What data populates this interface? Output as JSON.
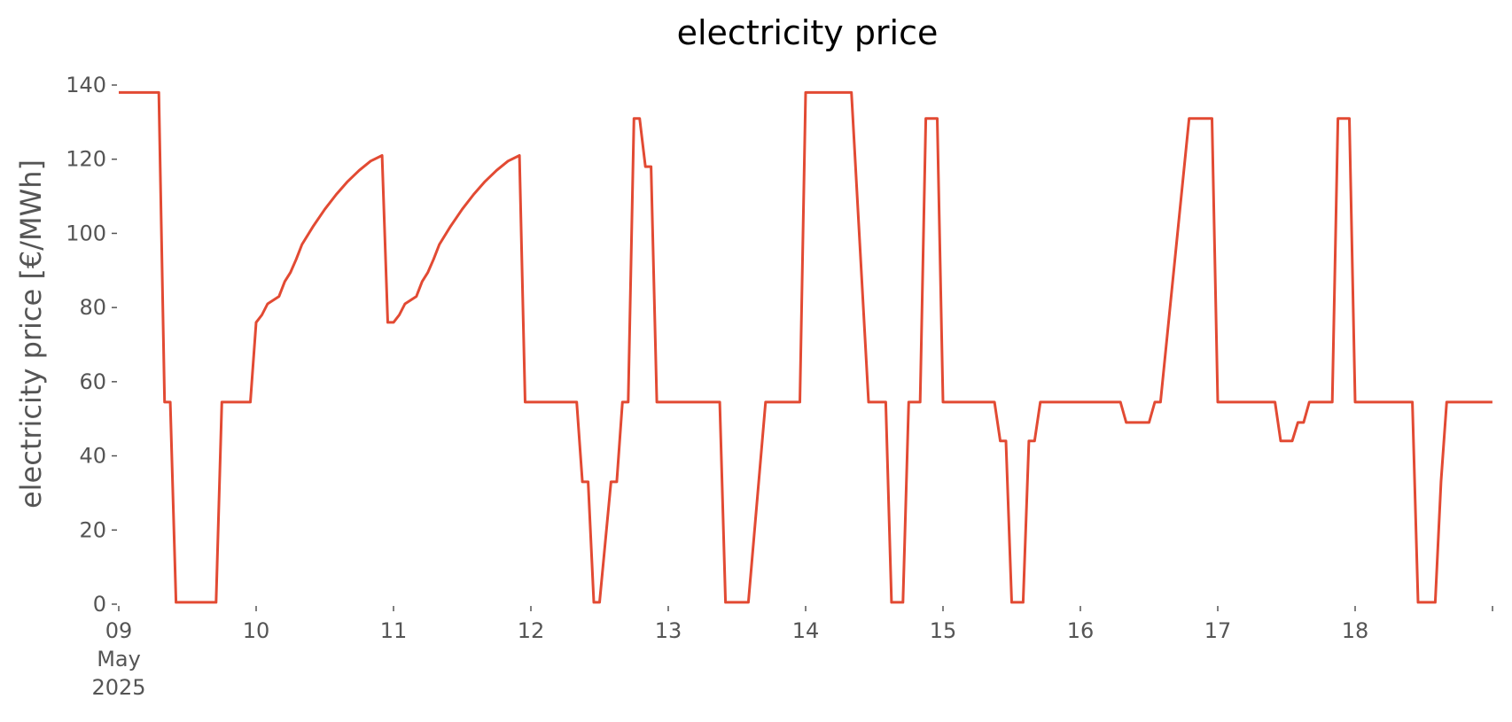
{
  "chart_data": {
    "type": "line",
    "title": "electricity price",
    "xlabel": "",
    "ylabel": "electricity price [€/MWh]",
    "ylim": [
      0,
      140
    ],
    "yticks": [
      0,
      20,
      40,
      60,
      80,
      100,
      120,
      140
    ],
    "xlim": [
      "2025-05-09 00:00",
      "2025-05-19 00:00"
    ],
    "xticks": [
      {
        "x": "2025-05-09 00:00",
        "lines": [
          "09",
          "May",
          "2025"
        ]
      },
      {
        "x": "2025-05-10 00:00",
        "lines": [
          "10"
        ]
      },
      {
        "x": "2025-05-11 00:00",
        "lines": [
          "11"
        ]
      },
      {
        "x": "2025-05-12 00:00",
        "lines": [
          "12"
        ]
      },
      {
        "x": "2025-05-13 00:00",
        "lines": [
          "13"
        ]
      },
      {
        "x": "2025-05-14 00:00",
        "lines": [
          "14"
        ]
      },
      {
        "x": "2025-05-15 00:00",
        "lines": [
          "15"
        ]
      },
      {
        "x": "2025-05-16 00:00",
        "lines": [
          "16"
        ]
      },
      {
        "x": "2025-05-17 00:00",
        "lines": [
          "17"
        ]
      },
      {
        "x": "2025-05-18 00:00",
        "lines": [
          "18"
        ]
      },
      {
        "x": "2025-05-19 00:00",
        "lines": [
          ""
        ]
      }
    ],
    "grid": false,
    "colors": {
      "series": "#e24a33"
    },
    "series": [
      {
        "name": "",
        "x": [
          "2025-05-09 00:00",
          "2025-05-09 07:00",
          "2025-05-09 08:00",
          "2025-05-09 09:00",
          "2025-05-09 10:00",
          "2025-05-09 11:00",
          "2025-05-09 17:00",
          "2025-05-09 18:00",
          "2025-05-09 23:00",
          "2025-05-10 00:00",
          "2025-05-10 01:00",
          "2025-05-10 02:00",
          "2025-05-10 04:00",
          "2025-05-10 05:00",
          "2025-05-10 06:00",
          "2025-05-10 07:00",
          "2025-05-10 08:00",
          "2025-05-10 10:00",
          "2025-05-10 12:00",
          "2025-05-10 14:00",
          "2025-05-10 16:00",
          "2025-05-10 18:00",
          "2025-05-10 20:00",
          "2025-05-10 22:00",
          "2025-05-10 23:00",
          "2025-05-11 00:00",
          "2025-05-11 01:00",
          "2025-05-11 02:00",
          "2025-05-11 04:00",
          "2025-05-11 05:00",
          "2025-05-11 06:00",
          "2025-05-11 07:00",
          "2025-05-11 08:00",
          "2025-05-11 10:00",
          "2025-05-11 12:00",
          "2025-05-11 14:00",
          "2025-05-11 16:00",
          "2025-05-11 18:00",
          "2025-05-11 20:00",
          "2025-05-11 22:00",
          "2025-05-11 23:00",
          "2025-05-12 00:00",
          "2025-05-12 01:00",
          "2025-05-12 08:00",
          "2025-05-12 09:00",
          "2025-05-12 10:00",
          "2025-05-12 11:00",
          "2025-05-12 12:00",
          "2025-05-12 14:00",
          "2025-05-12 15:00",
          "2025-05-12 16:00",
          "2025-05-12 17:00",
          "2025-05-12 18:00",
          "2025-05-12 19:00",
          "2025-05-12 20:00",
          "2025-05-12 21:00",
          "2025-05-12 22:00",
          "2025-05-12 23:00",
          "2025-05-13 00:00",
          "2025-05-13 09:00",
          "2025-05-13 10:00",
          "2025-05-13 12:00",
          "2025-05-13 14:00",
          "2025-05-13 17:00",
          "2025-05-13 18:00",
          "2025-05-13 23:00",
          "2025-05-14 00:00",
          "2025-05-14 07:00",
          "2025-05-14 08:00",
          "2025-05-14 11:00",
          "2025-05-14 12:00",
          "2025-05-14 14:00",
          "2025-05-14 15:00",
          "2025-05-14 17:00",
          "2025-05-14 18:00",
          "2025-05-14 20:00",
          "2025-05-14 21:00",
          "2025-05-14 23:00",
          "2025-05-15 00:00",
          "2025-05-15 01:00",
          "2025-05-15 09:00",
          "2025-05-15 10:00",
          "2025-05-15 11:00",
          "2025-05-15 12:00",
          "2025-05-15 14:00",
          "2025-05-15 15:00",
          "2025-05-15 16:00",
          "2025-05-15 17:00",
          "2025-05-16 00:00",
          "2025-05-16 06:00",
          "2025-05-16 07:00",
          "2025-05-16 08:00",
          "2025-05-16 10:00",
          "2025-05-16 11:00",
          "2025-05-16 12:00",
          "2025-05-16 13:00",
          "2025-05-16 14:00",
          "2025-05-16 19:00",
          "2025-05-16 20:00",
          "2025-05-16 23:00",
          "2025-05-17 00:00",
          "2025-05-17 08:00",
          "2025-05-17 09:00",
          "2025-05-17 10:00",
          "2025-05-17 11:00",
          "2025-05-17 12:00",
          "2025-05-17 13:00",
          "2025-05-17 14:00",
          "2025-05-17 15:00",
          "2025-05-17 16:00",
          "2025-05-17 20:00",
          "2025-05-17 21:00",
          "2025-05-17 23:00",
          "2025-05-18 00:00",
          "2025-05-18 10:00",
          "2025-05-18 11:00",
          "2025-05-18 13:00",
          "2025-05-18 14:00",
          "2025-05-18 15:00",
          "2025-05-18 16:00",
          "2025-05-18 17:00",
          "2025-05-18 23:59"
        ],
        "y": [
          138,
          138,
          54.5,
          54.5,
          0.5,
          0.5,
          0.5,
          54.5,
          54.5,
          76,
          78,
          81,
          83,
          87,
          89.5,
          93,
          97,
          102,
          106.5,
          110.5,
          114,
          117,
          119.5,
          121,
          76,
          76,
          78,
          81,
          83,
          87,
          89.5,
          93,
          97,
          102,
          106.5,
          110.5,
          114,
          117,
          119.5,
          121,
          54.5,
          54.5,
          54.5,
          54.5,
          33,
          33,
          0.5,
          0.5,
          33,
          33,
          54.5,
          54.5,
          131,
          131,
          118,
          118,
          54.5,
          54.5,
          54.5,
          54.5,
          0.5,
          0.5,
          0.5,
          54.5,
          54.5,
          54.5,
          138,
          138,
          138,
          54.5,
          54.5,
          54.5,
          0.5,
          0.5,
          54.5,
          54.5,
          131,
          131,
          54.5,
          54.5,
          54.5,
          44,
          44,
          0.5,
          0.5,
          44,
          44,
          54.5,
          54.5,
          54.5,
          54.5,
          49,
          49,
          49,
          49,
          54.5,
          54.5,
          131,
          131,
          131,
          54.5,
          54.5,
          54.5,
          54.5,
          44,
          44,
          44,
          49,
          49,
          54.5,
          54.5,
          131,
          131,
          54.5,
          54.5,
          0.5,
          0.5,
          0.5,
          33,
          54.5,
          54.5,
          54.5
        ]
      }
    ]
  }
}
